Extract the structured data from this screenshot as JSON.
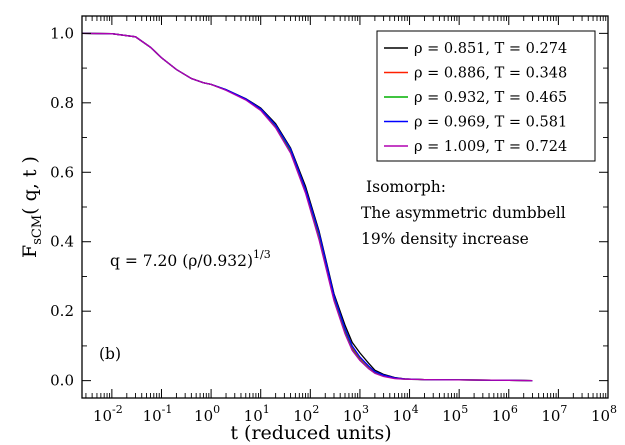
{
  "chart_data": {
    "type": "line",
    "xlabel": "t (reduced units)",
    "ylabel_main": "F",
    "ylabel_sub": "sCM",
    "ylabel_args": "( q, t )",
    "x_scale": "log",
    "xlim": [
      0.0025,
      100000000
    ],
    "ylim": [
      -0.05,
      1.05
    ],
    "x_ticks": [
      {
        "value": 0.01,
        "base": "10",
        "exp": "-2"
      },
      {
        "value": 0.1,
        "base": "10",
        "exp": "-1"
      },
      {
        "value": 1,
        "base": "10",
        "exp": "0"
      },
      {
        "value": 10,
        "base": "10",
        "exp": "1"
      },
      {
        "value": 100,
        "base": "10",
        "exp": "2"
      },
      {
        "value": 1000,
        "base": "10",
        "exp": "3"
      },
      {
        "value": 10000,
        "base": "10",
        "exp": "4"
      },
      {
        "value": 100000,
        "base": "10",
        "exp": "5"
      },
      {
        "value": 1000000,
        "base": "10",
        "exp": "6"
      },
      {
        "value": 10000000,
        "base": "10",
        "exp": "7"
      },
      {
        "value": 100000000,
        "base": "10",
        "exp": "8"
      }
    ],
    "y_ticks": [
      {
        "value": 0.0,
        "label": "0.0"
      },
      {
        "value": 0.2,
        "label": "0.2"
      },
      {
        "value": 0.4,
        "label": "0.4"
      },
      {
        "value": 0.6,
        "label": "0.6"
      },
      {
        "value": 0.8,
        "label": "0.8"
      },
      {
        "value": 1.0,
        "label": "1.0"
      }
    ],
    "grid": false,
    "legend_position": "top-right",
    "series": [
      {
        "name": "ρ = 0.851, T = 0.274",
        "color": "#000000",
        "x": [
          0.0025,
          0.01,
          0.03,
          0.06,
          0.1,
          0.2,
          0.4,
          0.7,
          1,
          2,
          5,
          10,
          20,
          40,
          80,
          150,
          300,
          500,
          700,
          1000,
          1500,
          2000,
          3000,
          5000,
          8000,
          20000,
          100000,
          1000000,
          3000000
        ],
        "y": [
          1.0,
          0.999,
          0.99,
          0.96,
          0.93,
          0.896,
          0.87,
          0.858,
          0.853,
          0.838,
          0.812,
          0.785,
          0.74,
          0.67,
          0.56,
          0.43,
          0.25,
          0.16,
          0.11,
          0.08,
          0.05,
          0.03,
          0.018,
          0.009,
          0.005,
          0.003,
          0.002,
          0.001,
          0.0
        ]
      },
      {
        "name": "ρ = 0.886, T = 0.348",
        "color": "#ff2000",
        "x": [
          0.0025,
          0.01,
          0.03,
          0.06,
          0.1,
          0.2,
          0.4,
          0.7,
          1,
          2,
          5,
          10,
          20,
          40,
          80,
          150,
          300,
          500,
          700,
          1000,
          1500,
          2000,
          3000,
          5000,
          8000,
          20000,
          100000,
          1000000,
          3000000
        ],
        "y": [
          1.0,
          0.999,
          0.99,
          0.96,
          0.93,
          0.896,
          0.87,
          0.858,
          0.853,
          0.837,
          0.81,
          0.782,
          0.735,
          0.665,
          0.55,
          0.42,
          0.24,
          0.145,
          0.095,
          0.065,
          0.04,
          0.025,
          0.015,
          0.008,
          0.005,
          0.003,
          0.002,
          0.001,
          0.0
        ]
      },
      {
        "name": "ρ = 0.932, T = 0.465",
        "color": "#00b000",
        "x": [
          0.0025,
          0.01,
          0.03,
          0.06,
          0.1,
          0.2,
          0.4,
          0.7,
          1,
          2,
          5,
          10,
          20,
          40,
          80,
          150,
          300,
          500,
          700,
          1000,
          1500,
          2000,
          3000,
          5000,
          8000,
          20000,
          100000,
          1000000,
          3000000
        ],
        "y": [
          1.0,
          0.999,
          0.99,
          0.96,
          0.93,
          0.896,
          0.87,
          0.858,
          0.853,
          0.837,
          0.81,
          0.78,
          0.73,
          0.66,
          0.545,
          0.41,
          0.235,
          0.14,
          0.09,
          0.06,
          0.035,
          0.022,
          0.013,
          0.007,
          0.004,
          0.003,
          0.002,
          0.001,
          0.0
        ]
      },
      {
        "name": "ρ = 0.969, T = 0.581",
        "color": "#0000ff",
        "x": [
          0.0025,
          0.01,
          0.03,
          0.06,
          0.1,
          0.2,
          0.4,
          0.7,
          1,
          2,
          5,
          10,
          20,
          40,
          80,
          150,
          300,
          500,
          700,
          1000,
          1500,
          2000,
          3000,
          5000,
          8000,
          20000,
          100000,
          1000000,
          3000000
        ],
        "y": [
          1.0,
          0.999,
          0.99,
          0.96,
          0.93,
          0.896,
          0.87,
          0.858,
          0.853,
          0.838,
          0.811,
          0.783,
          0.736,
          0.667,
          0.552,
          0.425,
          0.245,
          0.15,
          0.1,
          0.068,
          0.042,
          0.026,
          0.016,
          0.008,
          0.005,
          0.003,
          0.002,
          0.001,
          0.0
        ]
      },
      {
        "name": "ρ = 1.009, T = 0.724",
        "color": "#b000b0",
        "x": [
          0.0025,
          0.01,
          0.03,
          0.06,
          0.1,
          0.2,
          0.4,
          0.7,
          1,
          2,
          5,
          10,
          20,
          40,
          80,
          150,
          300,
          500,
          700,
          1000,
          1500,
          2000,
          3000,
          5000,
          8000,
          20000,
          100000,
          1000000,
          3000000
        ],
        "y": [
          1.0,
          0.999,
          0.99,
          0.96,
          0.93,
          0.896,
          0.87,
          0.858,
          0.853,
          0.836,
          0.808,
          0.778,
          0.728,
          0.655,
          0.54,
          0.405,
          0.23,
          0.135,
          0.087,
          0.058,
          0.034,
          0.021,
          0.012,
          0.006,
          0.004,
          0.003,
          0.002,
          0.001,
          0.0
        ]
      }
    ],
    "annotations": {
      "formula_prefix": "q = 7.20 (ρ/0.932)",
      "formula_exp": "1/3",
      "isomorph_title": "Isomorph:",
      "isomorph_line1": "The asymmetric dumbbell",
      "isomorph_line2": "19% density increase",
      "panel_label": "(b)"
    }
  }
}
